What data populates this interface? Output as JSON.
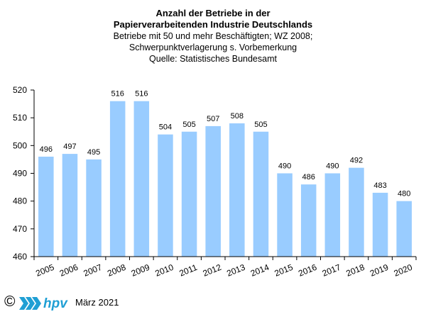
{
  "chart_data": {
    "type": "bar",
    "title": "Anzahl der Betriebe in der",
    "title_line2": "Papierverarbeitenden Industrie Deutschlands",
    "subtitle_lines": [
      "Betriebe mit 50 und mehr Beschäftigten;  WZ 2008;",
      "Schwerpunktverlagerung   s. Vorbemerkung",
      "Quelle:  Statistisches Bundesamt"
    ],
    "categories": [
      "2005",
      "2006",
      "2007",
      "2008",
      "2009",
      "2010",
      "2011",
      "2012",
      "2013",
      "2014",
      "2015",
      "2016",
      "2017",
      "2018",
      "2019",
      "2020"
    ],
    "values": [
      496,
      497,
      495,
      516,
      516,
      504,
      505,
      507,
      508,
      505,
      490,
      486,
      490,
      492,
      483,
      480
    ],
    "ylim": [
      460,
      520
    ],
    "yticks": [
      460,
      470,
      480,
      490,
      500,
      510,
      520
    ],
    "grid": false,
    "bar_color": "#99CCFF",
    "xlabel": "",
    "ylabel": ""
  },
  "footer": {
    "copyright_symbol": "©",
    "logo_text": "hpv",
    "logo_color": "#1F9FD4",
    "date": "März 2021"
  }
}
